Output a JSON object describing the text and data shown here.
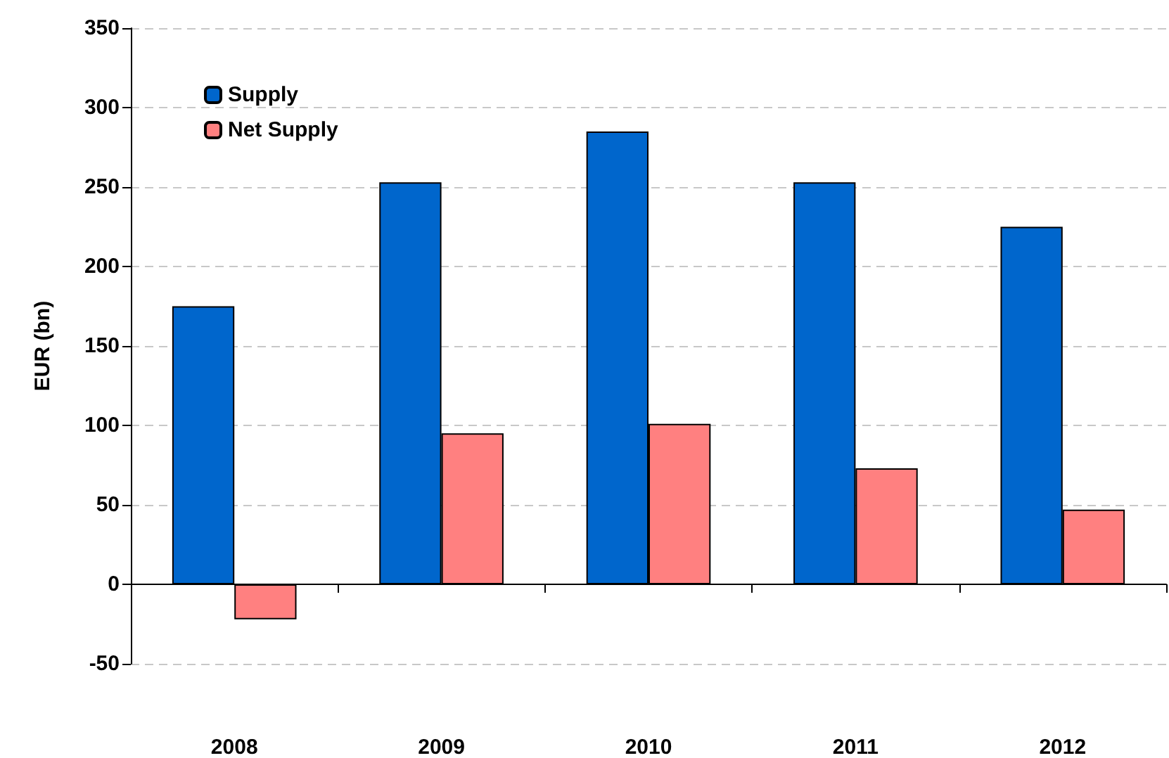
{
  "chart_data": {
    "type": "bar",
    "ylabel": "EUR (bn)",
    "categories": [
      "2008",
      "2009",
      "2010",
      "2011",
      "2012"
    ],
    "series": [
      {
        "name": "Supply",
        "color": "#0066cc",
        "values": [
          175,
          253,
          285,
          253,
          225
        ]
      },
      {
        "name": "Net Supply",
        "color": "#ff8080",
        "values": [
          -22,
          95,
          101,
          73,
          47
        ]
      }
    ],
    "ylim": [
      -50,
      350
    ],
    "yticks": [
      -50,
      0,
      50,
      100,
      150,
      200,
      250,
      300,
      350
    ],
    "grid": "y",
    "legend": "top left"
  }
}
